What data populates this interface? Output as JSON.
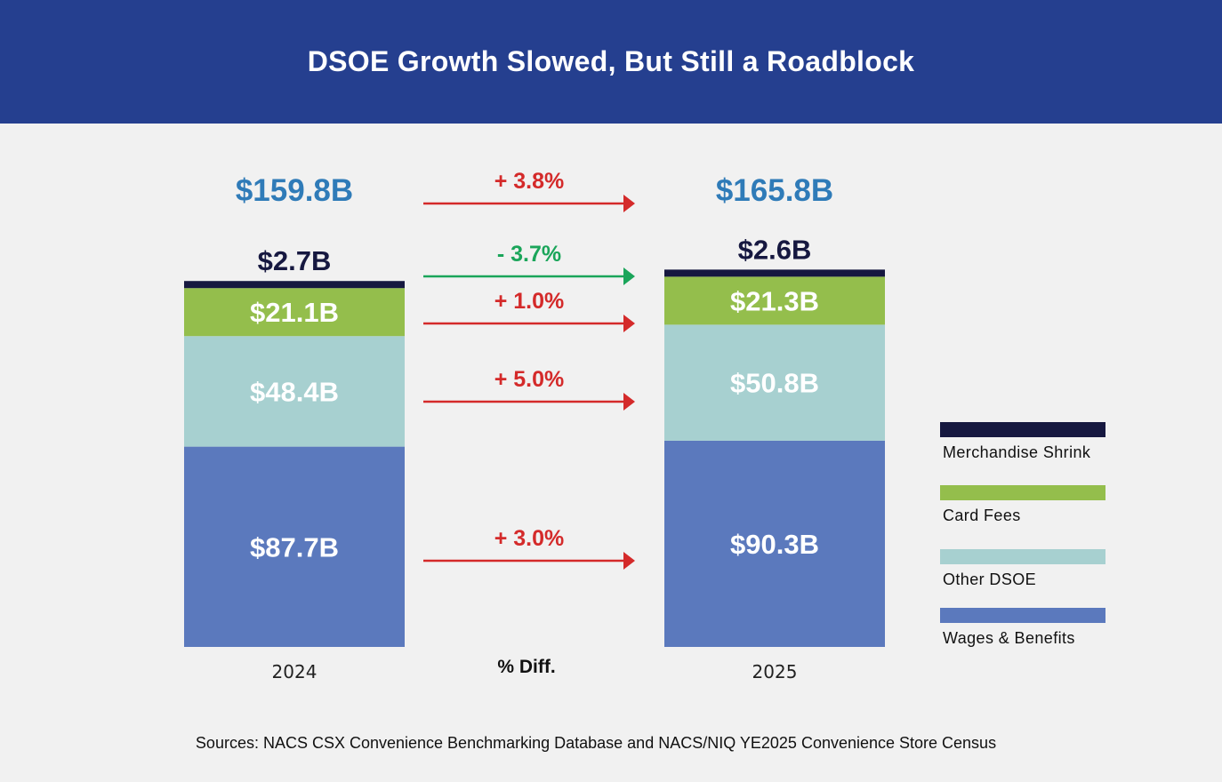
{
  "title": "DSOE Growth Slowed, But Still a Roadblock",
  "sources": "Sources: NACS CSX Convenience Benchmarking Database and NACS/NIQ YE2025 Convenience Store Census",
  "colors": {
    "header_bg": "#253f8f",
    "total_label": "#2f7bb8",
    "increase": "#d42a2a",
    "decrease": "#1aa55a",
    "Merchandise Shrink": "#161840",
    "Card Fees": "#94be4c",
    "Other DSOE": "#a7d0d0",
    "Wages & Benefits": "#5b79bd"
  },
  "chart_data": {
    "type": "bar",
    "stacked": true,
    "categories": [
      "2024",
      "2025"
    ],
    "unit": "$B",
    "series": [
      {
        "name": "Wages & Benefits",
        "values": [
          87.7,
          90.3
        ],
        "labels": [
          "$87.7B",
          "$90.3B"
        ],
        "change": "+ 3.0%"
      },
      {
        "name": "Other DSOE",
        "values": [
          48.4,
          50.8
        ],
        "labels": [
          "$48.4B",
          "$50.8B"
        ],
        "change": "+ 5.0%"
      },
      {
        "name": "Card Fees",
        "values": [
          21.1,
          21.3
        ],
        "labels": [
          "$21.1B",
          "$21.3B"
        ],
        "change": "+ 1.0%"
      },
      {
        "name": "Merchandise Shrink",
        "values": [
          2.7,
          2.6
        ],
        "labels": [
          "$2.7B",
          "$2.6B"
        ],
        "change": "- 3.7%"
      }
    ],
    "totals": {
      "values": [
        159.8,
        165.8
      ],
      "labels": [
        "$159.8B",
        "$165.8B"
      ],
      "change": "+ 3.8%"
    },
    "diff_label": "% Diff.",
    "legend": [
      "Merchandise Shrink",
      "Card Fees",
      "Other DSOE",
      "Wages & Benefits"
    ],
    "legend_position": "right"
  }
}
